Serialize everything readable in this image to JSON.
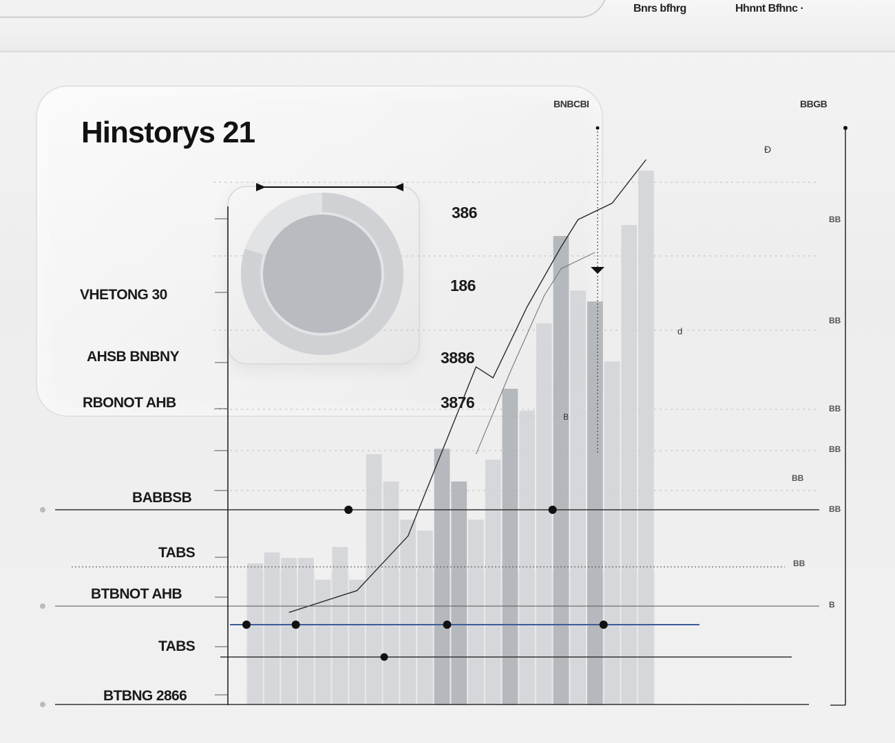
{
  "nav": {
    "links": [
      "Bnrs bfhrg",
      "Hhnnt Bfhnc"
    ],
    "dropdown_glyph": "·"
  },
  "title": "Hinstorys 21",
  "header_labels": {
    "center": "BNBCBI",
    "right": "BBGB"
  },
  "left_panel": {
    "stats": [
      {
        "label": "VHETONG 30",
        "value": "386"
      },
      {
        "label": "AHSB BNBNY",
        "value": "186"
      },
      {
        "label": "RBONOT AHB",
        "value": "3886"
      },
      {
        "label": "",
        "value": "3876"
      }
    ]
  },
  "donut": {
    "value": 0.8,
    "ring_color": "#cfd1d4",
    "center_color": "#b8bbbf"
  },
  "axis_labels": [
    "BABBSB",
    "TABS",
    "BTBNOT AHB",
    "TABS",
    "BTBNG 2866"
  ],
  "right_ticks": [
    "BB",
    "BB",
    "BB",
    "BB",
    "BB",
    "BB",
    "B",
    "BB"
  ],
  "annotations": [
    "Ð",
    "d",
    "B",
    "B"
  ],
  "colors": {
    "bar_dark": "#aeb2b7",
    "bar_light": "#d2d4d7",
    "line": "#2a2a2a",
    "accent_blue": "#3c5a9a",
    "grid": "#bdbdbd"
  },
  "chart_data": {
    "type": "bar",
    "title": "Hinstorys 21",
    "bars": [
      {
        "x": 0,
        "value": 26,
        "shade": "light"
      },
      {
        "x": 1,
        "value": 28,
        "shade": "light"
      },
      {
        "x": 2,
        "value": 27,
        "shade": "light"
      },
      {
        "x": 3,
        "value": 27,
        "shade": "light"
      },
      {
        "x": 4,
        "value": 23,
        "shade": "light"
      },
      {
        "x": 5,
        "value": 29,
        "shade": "light"
      },
      {
        "x": 6,
        "value": 23,
        "shade": "light"
      },
      {
        "x": 7,
        "value": 46,
        "shade": "light"
      },
      {
        "x": 8,
        "value": 41,
        "shade": "light"
      },
      {
        "x": 9,
        "value": 34,
        "shade": "light"
      },
      {
        "x": 10,
        "value": 32,
        "shade": "light"
      },
      {
        "x": 11,
        "value": 47,
        "shade": "dark"
      },
      {
        "x": 12,
        "value": 41,
        "shade": "dark"
      },
      {
        "x": 13,
        "value": 34,
        "shade": "light"
      },
      {
        "x": 14,
        "value": 45,
        "shade": "light"
      },
      {
        "x": 15,
        "value": 58,
        "shade": "dark"
      },
      {
        "x": 16,
        "value": 54,
        "shade": "light"
      },
      {
        "x": 17,
        "value": 70,
        "shade": "light"
      },
      {
        "x": 18,
        "value": 86,
        "shade": "dark"
      },
      {
        "x": 19,
        "value": 76,
        "shade": "light"
      },
      {
        "x": 20,
        "value": 74,
        "shade": "dark"
      },
      {
        "x": 21,
        "value": 63,
        "shade": "light"
      },
      {
        "x": 22,
        "value": 88,
        "shade": "light"
      },
      {
        "x": 23,
        "value": 98,
        "shade": "light"
      }
    ],
    "line": [
      {
        "x": 2,
        "y": 17
      },
      {
        "x": 6,
        "y": 21
      },
      {
        "x": 9,
        "y": 31
      },
      {
        "x": 13,
        "y": 62
      },
      {
        "x": 14,
        "y": 60
      },
      {
        "x": 16,
        "y": 73
      },
      {
        "x": 18,
        "y": 84
      },
      {
        "x": 19,
        "y": 89
      },
      {
        "x": 21,
        "y": 92
      },
      {
        "x": 23,
        "y": 100
      }
    ],
    "secondary_line": [
      {
        "x": 13,
        "y": 46
      },
      {
        "x": 15,
        "y": 61
      },
      {
        "x": 17,
        "y": 75
      },
      {
        "x": 18,
        "y": 80
      },
      {
        "x": 20,
        "y": 83
      }
    ],
    "markers_row1": [
      {
        "x": 5.5
      },
      {
        "x": 17.5
      }
    ],
    "markers_row2": [
      {
        "x": 0
      },
      {
        "x": 2.9
      },
      {
        "x": 11.8
      },
      {
        "x": 21
      }
    ],
    "markers_row3": [
      {
        "x": 7.6
      }
    ],
    "ylim": [
      0,
      100
    ],
    "grid": true
  }
}
